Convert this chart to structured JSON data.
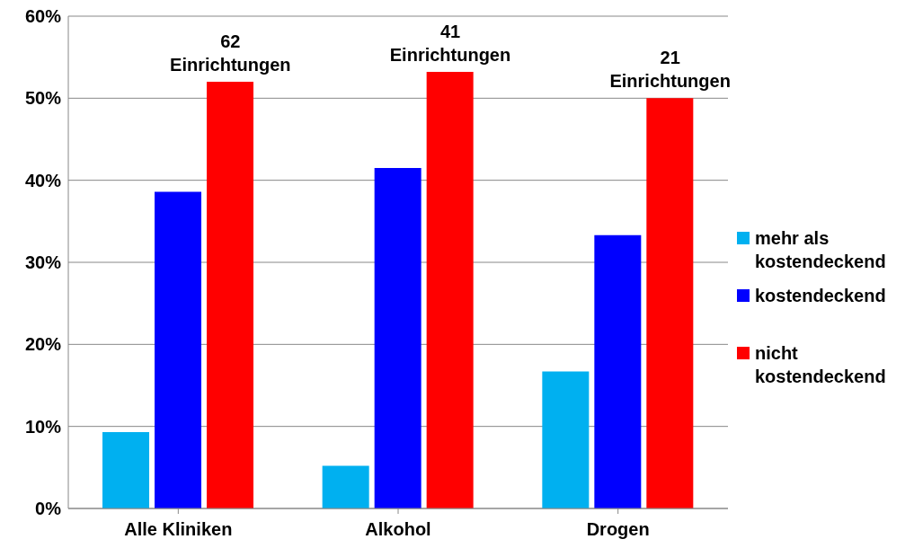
{
  "chart_data": {
    "type": "bar",
    "categories": [
      "Alle Kliniken",
      "Alkohol",
      "Drogen"
    ],
    "series": [
      {
        "name": "mehr als kostendeckend",
        "color": "#00b0f0",
        "values": [
          9.3,
          5.2,
          16.7
        ]
      },
      {
        "name": "kostendeckend",
        "color": "#0000ff",
        "values": [
          38.6,
          41.5,
          33.3
        ]
      },
      {
        "name": "nicht kostendeckend",
        "color": "#ff0000",
        "values": [
          52,
          53.2,
          50
        ]
      }
    ],
    "ylim": [
      0,
      60
    ],
    "yticks": [
      {
        "value": 0,
        "label": "0%"
      },
      {
        "value": 10,
        "label": "10%"
      },
      {
        "value": 20,
        "label": "20%"
      },
      {
        "value": 30,
        "label": "30%"
      },
      {
        "value": 40,
        "label": "40%"
      },
      {
        "value": 50,
        "label": "50%"
      },
      {
        "value": 60,
        "label": "60%"
      }
    ],
    "grid": "y",
    "legend": "right",
    "annotations": [
      "62 Einrichtungen",
      "41 Einrichtungen",
      "21 Einrichtungen"
    ]
  }
}
